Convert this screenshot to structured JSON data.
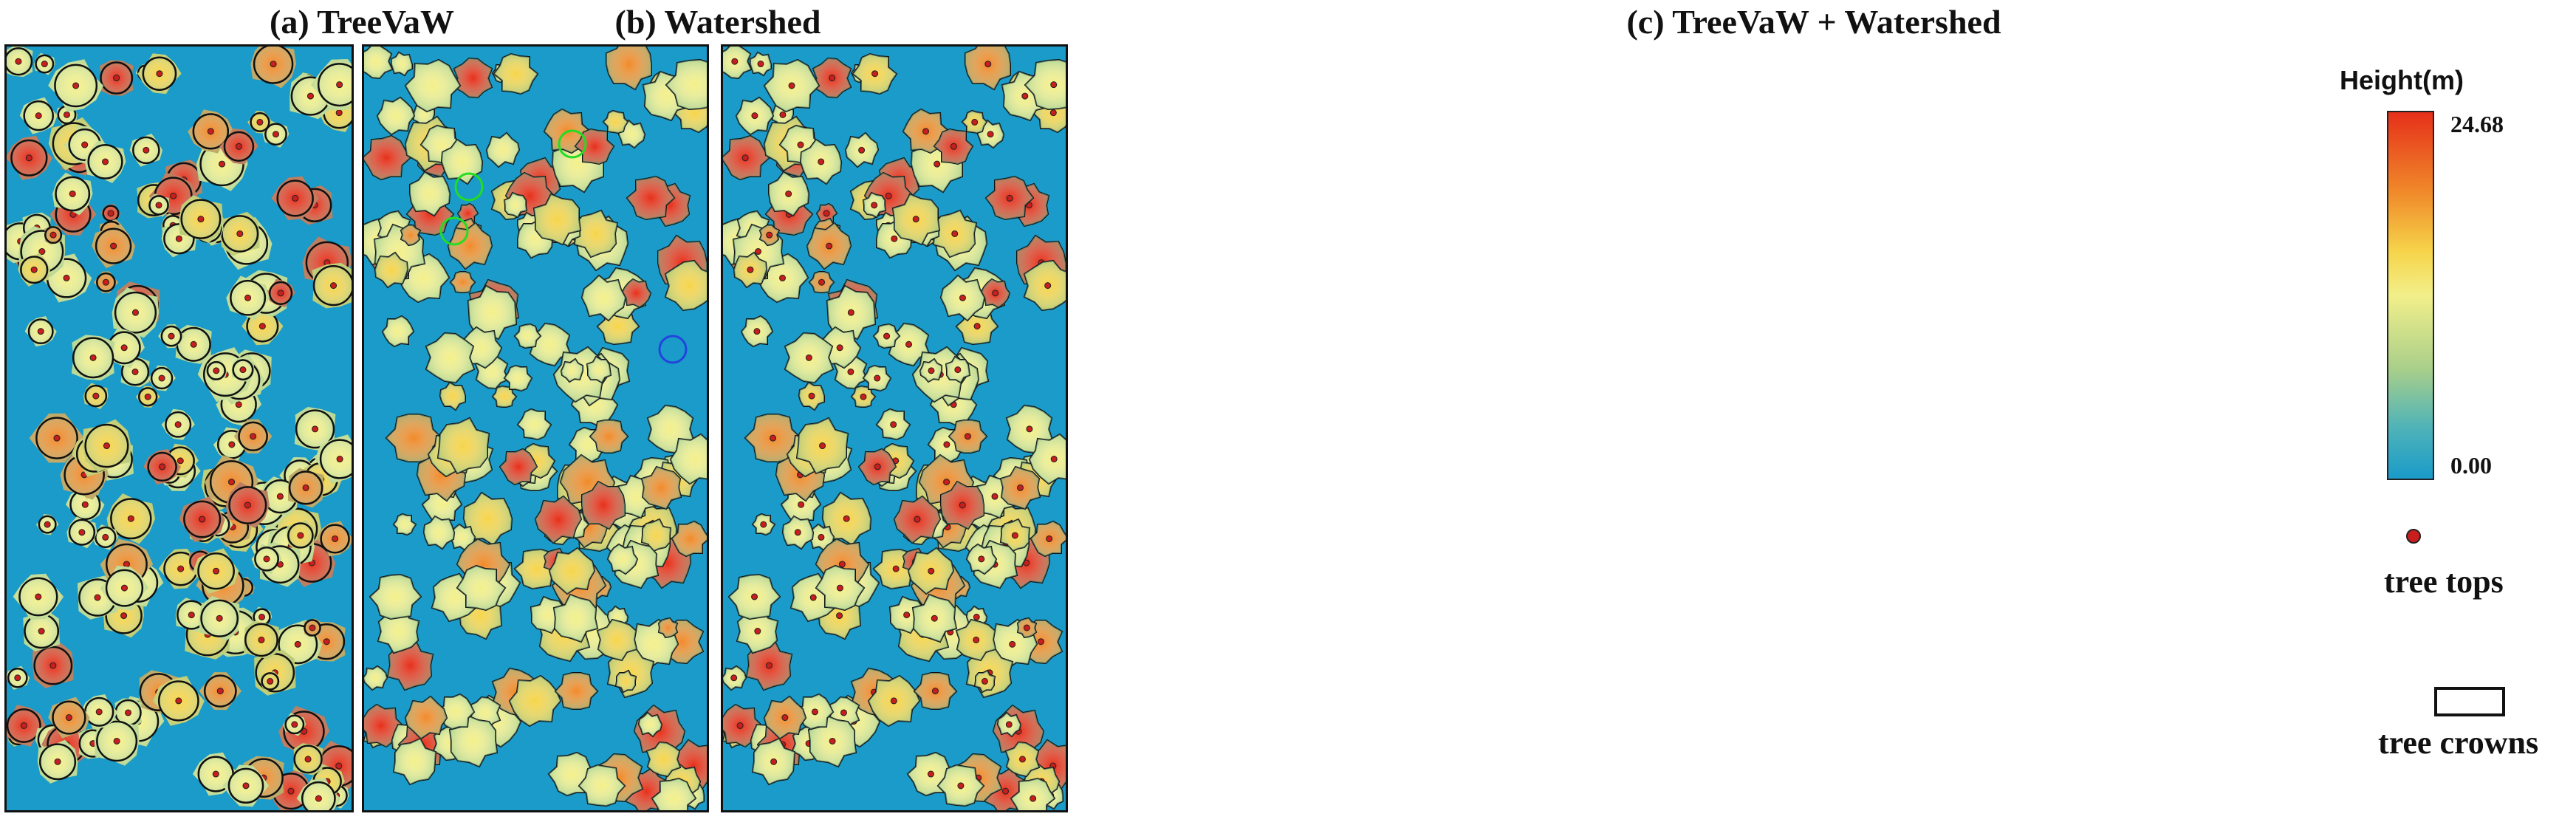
{
  "panels": [
    {
      "id": "a",
      "title": "(a) TreeVaW"
    },
    {
      "id": "b",
      "title": "(b) Watershed"
    },
    {
      "id": "c",
      "title": "(c) TreeVaW + Watershed"
    }
  ],
  "legend": {
    "height_title": "Height(m)",
    "max_label": "24.68",
    "min_label": "0.00",
    "tree_tops_label": "tree tops",
    "tree_crowns_label": "tree crowns"
  },
  "colors": {
    "background": "#1a9bc9",
    "low": "#1a9bc9",
    "mid": "#f2ef8a",
    "high": "#e6301a",
    "tree_top": "#c81e1e",
    "outline": "#111111",
    "highlight_green": "#22dd22",
    "highlight_blue": "#2244dd"
  }
}
